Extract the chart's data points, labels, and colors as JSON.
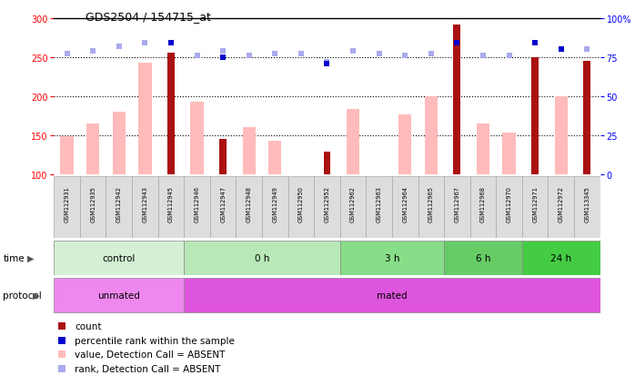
{
  "title": "GDS2504 / 154715_at",
  "samples": [
    "GSM112931",
    "GSM112935",
    "GSM112942",
    "GSM112943",
    "GSM112945",
    "GSM112946",
    "GSM112947",
    "GSM112948",
    "GSM112949",
    "GSM112950",
    "GSM112952",
    "GSM112962",
    "GSM112963",
    "GSM112964",
    "GSM112965",
    "GSM112967",
    "GSM112968",
    "GSM112970",
    "GSM112971",
    "GSM112972",
    "GSM113345"
  ],
  "value_absent": [
    148,
    165,
    180,
    243,
    0,
    193,
    0,
    160,
    143,
    0,
    0,
    183,
    0,
    176,
    200,
    0,
    165,
    153,
    0,
    200,
    0
  ],
  "count_red": [
    0,
    0,
    0,
    0,
    255,
    0,
    145,
    0,
    0,
    0,
    129,
    0,
    0,
    0,
    0,
    291,
    0,
    0,
    250,
    0,
    245
  ],
  "rank_absent": [
    77,
    79,
    82,
    84,
    0,
    76,
    79,
    76,
    77,
    77,
    72,
    79,
    77,
    76,
    77,
    0,
    76,
    76,
    0,
    80,
    80
  ],
  "percentile_dark": [
    0,
    0,
    0,
    0,
    84,
    0,
    75,
    0,
    0,
    0,
    71,
    0,
    0,
    0,
    0,
    84,
    0,
    0,
    84,
    80,
    0
  ],
  "time_groups": [
    {
      "label": "control",
      "start": 0,
      "end": 5,
      "color": "#d4f0d4"
    },
    {
      "label": "0 h",
      "start": 5,
      "end": 11,
      "color": "#b8e8b8"
    },
    {
      "label": "3 h",
      "start": 11,
      "end": 15,
      "color": "#88dd88"
    },
    {
      "label": "6 h",
      "start": 15,
      "end": 18,
      "color": "#66cc66"
    },
    {
      "label": "24 h",
      "start": 18,
      "end": 21,
      "color": "#44cc44"
    }
  ],
  "protocol_groups": [
    {
      "label": "unmated",
      "start": 0,
      "end": 5,
      "color": "#ee88ee"
    },
    {
      "label": "mated",
      "start": 5,
      "end": 21,
      "color": "#dd55dd"
    }
  ],
  "ylim_left": [
    100,
    300
  ],
  "ylim_right": [
    0,
    100
  ],
  "yticks_left": [
    100,
    150,
    200,
    250,
    300
  ],
  "yticks_right": [
    0,
    25,
    50,
    75,
    100
  ],
  "ytick_labels_right": [
    "0",
    "25",
    "50",
    "75",
    "100%"
  ],
  "color_red": "#aa1111",
  "color_pink": "#ffbbbb",
  "color_blue_dark": "#0000cc",
  "color_blue_light": "#aaaaee",
  "bar_width": 0.5
}
